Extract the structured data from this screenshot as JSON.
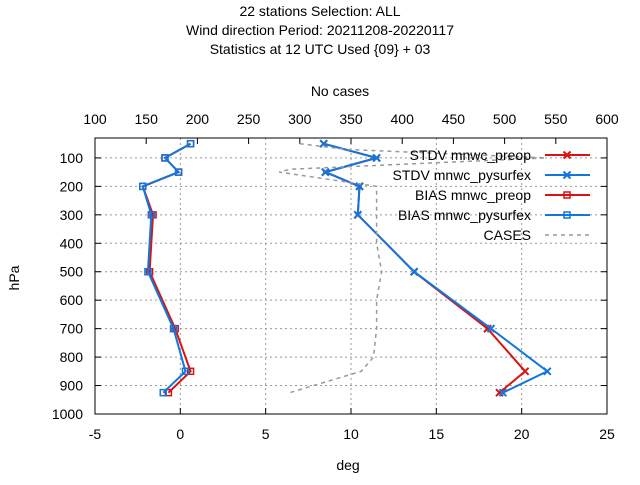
{
  "chart_data": {
    "type": "line",
    "title": [
      "22 stations Selection: ALL",
      "Wind direction  Period: 20211208-20220117",
      "Statistics at 12 UTC  Used {09} + 03"
    ],
    "xlabel": "deg",
    "ylabel": "hPa",
    "x2label": "No cases",
    "xlim": [
      -5,
      25
    ],
    "x2lim": [
      100,
      600
    ],
    "ylim": [
      1000,
      30
    ],
    "xticks": [
      "-5",
      "0",
      "5",
      "10",
      "15",
      "20",
      "25"
    ],
    "x2ticks": [
      "100",
      "150",
      "200",
      "250",
      "300",
      "350",
      "400",
      "450",
      "500",
      "550",
      "600"
    ],
    "yticks": [
      "100",
      "200",
      "300",
      "400",
      "500",
      "600",
      "700",
      "800",
      "900",
      "1000"
    ],
    "grid": true,
    "legend_position": "top-right",
    "colors": {
      "preop": "#dd1111",
      "pysurfex": "#1177dd",
      "cases": "#999999"
    },
    "series": [
      {
        "name": "STDV mnwc_preop",
        "marker": "x",
        "color": "#dd1111",
        "points": [
          [
            8.4,
            50
          ],
          [
            11.5,
            100
          ],
          [
            8.5,
            150
          ],
          [
            10.5,
            200
          ],
          [
            10.4,
            300
          ],
          [
            13.7,
            500
          ],
          [
            18.0,
            700
          ],
          [
            20.2,
            850
          ],
          [
            18.7,
            925
          ]
        ]
      },
      {
        "name": "STDV mnwc_pysurfex",
        "marker": "x",
        "color": "#1177dd",
        "points": [
          [
            8.4,
            50
          ],
          [
            11.5,
            100
          ],
          [
            8.5,
            150
          ],
          [
            10.5,
            200
          ],
          [
            10.4,
            300
          ],
          [
            13.7,
            500
          ],
          [
            18.2,
            700
          ],
          [
            21.5,
            850
          ],
          [
            18.9,
            925
          ]
        ]
      },
      {
        "name": "BIAS mnwc_preop",
        "marker": "square",
        "color": "#dd1111",
        "points": [
          [
            0.6,
            50
          ],
          [
            -0.9,
            100
          ],
          [
            -0.1,
            150
          ],
          [
            -2.2,
            200
          ],
          [
            -1.6,
            300
          ],
          [
            -1.8,
            500
          ],
          [
            -0.3,
            700
          ],
          [
            0.6,
            850
          ],
          [
            -0.7,
            925
          ]
        ]
      },
      {
        "name": "BIAS mnwc_pysurfex",
        "marker": "square",
        "color": "#1177dd",
        "points": [
          [
            0.6,
            50
          ],
          [
            -0.9,
            100
          ],
          [
            -0.1,
            150
          ],
          [
            -2.2,
            200
          ],
          [
            -1.7,
            300
          ],
          [
            -1.9,
            500
          ],
          [
            -0.4,
            700
          ],
          [
            0.3,
            850
          ],
          [
            -1.0,
            925
          ]
        ]
      },
      {
        "name": "CASES",
        "marker": "none",
        "color": "#999999",
        "dashed": true,
        "axis": "x2",
        "points": [
          [
            300,
            50
          ],
          [
            345,
            70
          ],
          [
            540,
            100
          ],
          [
            290,
            140
          ],
          [
            280,
            150
          ],
          [
            375,
            200
          ],
          [
            375,
            300
          ],
          [
            375,
            400
          ],
          [
            380,
            500
          ],
          [
            375,
            600
          ],
          [
            375,
            700
          ],
          [
            372,
            800
          ],
          [
            360,
            850
          ],
          [
            290,
            925
          ]
        ]
      }
    ]
  }
}
